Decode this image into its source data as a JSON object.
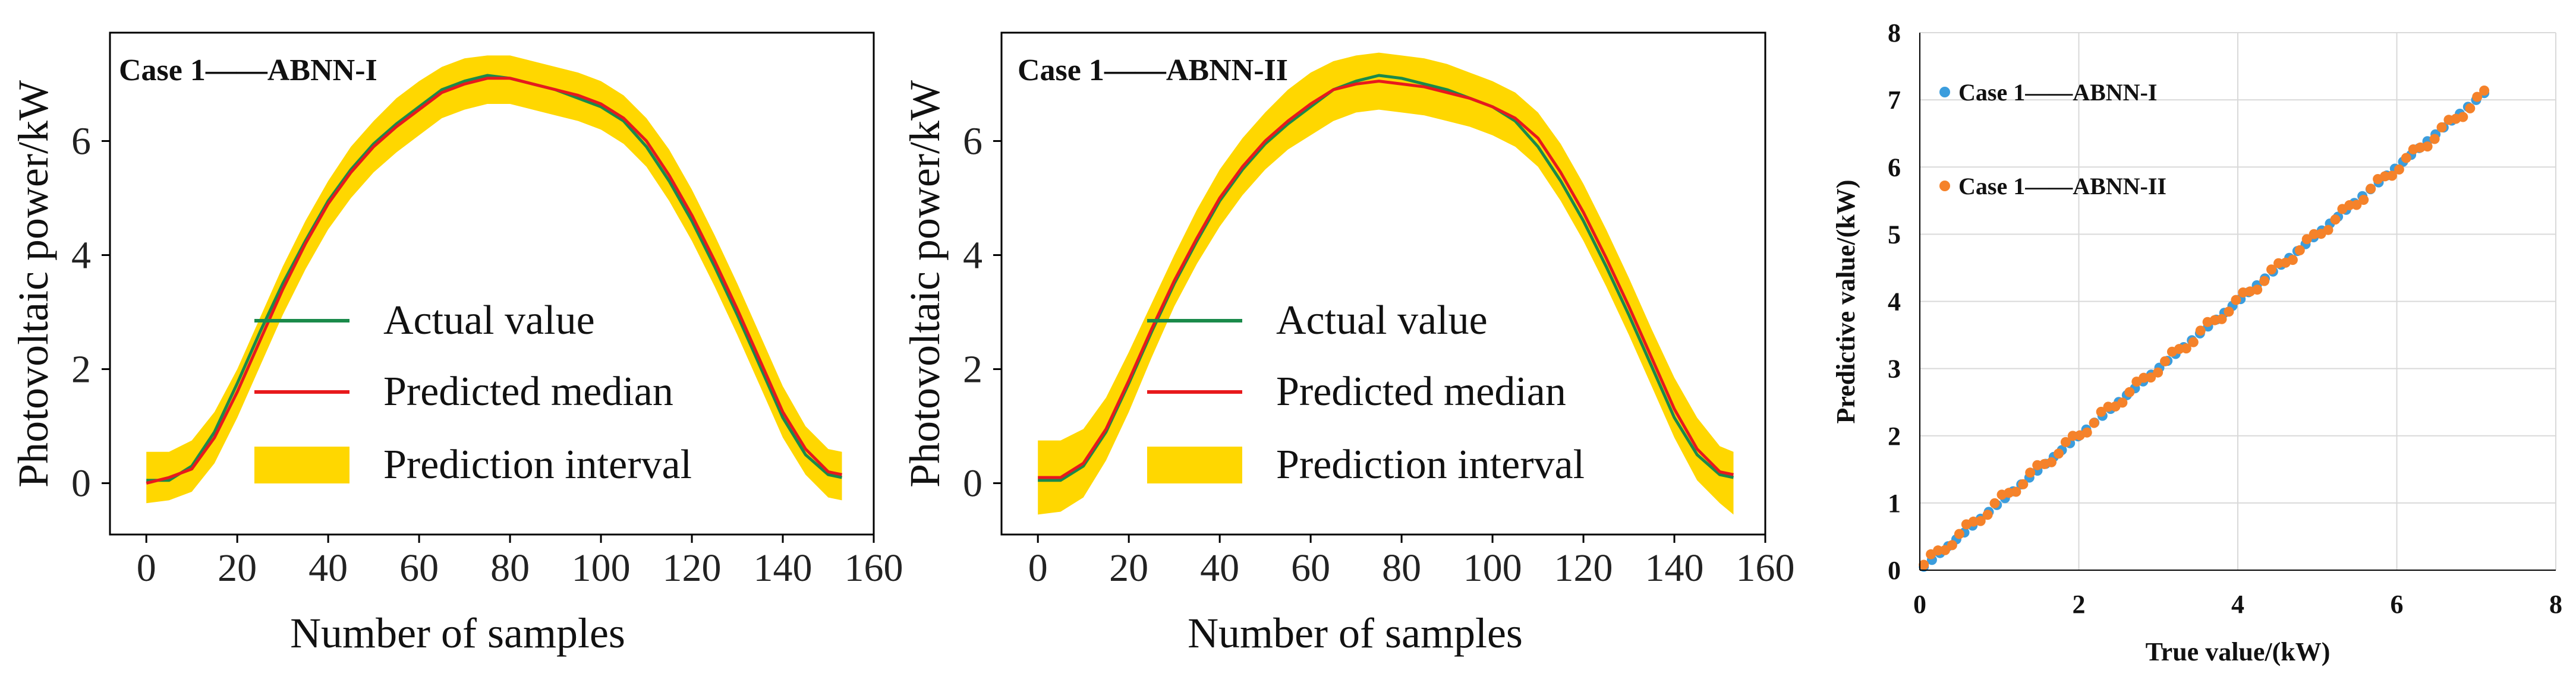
{
  "chart_data": [
    {
      "type": "line",
      "case_label": "Case 1——ABNN-I",
      "xlabel": "Number of samples",
      "ylabel": "Photovoltaic power/kW",
      "xlim": [
        -8,
        160
      ],
      "ylim": [
        -0.9,
        7.9
      ],
      "xticks": [
        0,
        20,
        40,
        60,
        80,
        100,
        120,
        140,
        160
      ],
      "yticks": [
        0,
        2,
        4,
        6
      ],
      "legend": [
        "Actual value",
        "Predicted median",
        "Prediction interval"
      ],
      "colors": {
        "actual": "#1a8a4a",
        "median": "#e8191c",
        "interval": "#ffd700"
      },
      "x": [
        0,
        5,
        10,
        15,
        20,
        25,
        30,
        35,
        40,
        45,
        50,
        55,
        60,
        65,
        70,
        75,
        80,
        85,
        90,
        95,
        100,
        105,
        110,
        115,
        120,
        125,
        130,
        135,
        140,
        145,
        150,
        153
      ],
      "actual": [
        0.05,
        0.05,
        0.3,
        0.9,
        1.75,
        2.65,
        3.5,
        4.25,
        4.95,
        5.5,
        5.95,
        6.3,
        6.6,
        6.9,
        7.05,
        7.15,
        7.1,
        7.0,
        6.9,
        6.75,
        6.6,
        6.35,
        5.9,
        5.3,
        4.6,
        3.8,
        2.95,
        2.05,
        1.15,
        0.5,
        0.15,
        0.1
      ],
      "median": [
        0.0,
        0.1,
        0.25,
        0.8,
        1.6,
        2.5,
        3.4,
        4.2,
        4.9,
        5.45,
        5.9,
        6.25,
        6.55,
        6.85,
        7.0,
        7.1,
        7.1,
        7.0,
        6.9,
        6.8,
        6.65,
        6.4,
        6.0,
        5.4,
        4.7,
        3.9,
        3.05,
        2.15,
        1.25,
        0.6,
        0.2,
        0.15
      ],
      "upper": [
        0.55,
        0.55,
        0.75,
        1.25,
        2.0,
        2.9,
        3.8,
        4.6,
        5.3,
        5.9,
        6.35,
        6.75,
        7.05,
        7.3,
        7.45,
        7.5,
        7.5,
        7.4,
        7.3,
        7.2,
        7.05,
        6.8,
        6.4,
        5.85,
        5.15,
        4.35,
        3.5,
        2.6,
        1.7,
        1.0,
        0.6,
        0.55
      ],
      "lower": [
        -0.35,
        -0.3,
        -0.15,
        0.35,
        1.15,
        2.05,
        2.95,
        3.75,
        4.45,
        5.0,
        5.45,
        5.8,
        6.1,
        6.4,
        6.55,
        6.65,
        6.65,
        6.55,
        6.45,
        6.35,
        6.2,
        5.95,
        5.55,
        4.95,
        4.25,
        3.45,
        2.6,
        1.7,
        0.8,
        0.15,
        -0.25,
        -0.3
      ]
    },
    {
      "type": "line",
      "case_label": "Case 1——ABNN-II",
      "xlabel": "Number of samples",
      "ylabel": "Photovoltaic power/kW",
      "xlim": [
        -8,
        160
      ],
      "ylim": [
        -0.9,
        7.9
      ],
      "xticks": [
        0,
        20,
        40,
        60,
        80,
        100,
        120,
        140,
        160
      ],
      "yticks": [
        0,
        2,
        4,
        6
      ],
      "legend": [
        "Actual value",
        "Predicted median",
        "Prediction interval"
      ],
      "colors": {
        "actual": "#1a8a4a",
        "median": "#e8191c",
        "interval": "#ffd700"
      },
      "x": [
        0,
        5,
        10,
        15,
        20,
        25,
        30,
        35,
        40,
        45,
        50,
        55,
        60,
        65,
        70,
        75,
        80,
        85,
        90,
        95,
        100,
        105,
        110,
        115,
        120,
        125,
        130,
        135,
        140,
        145,
        150,
        153
      ],
      "actual": [
        0.05,
        0.05,
        0.3,
        0.9,
        1.75,
        2.65,
        3.5,
        4.25,
        4.95,
        5.5,
        5.95,
        6.3,
        6.6,
        6.9,
        7.05,
        7.15,
        7.1,
        7.0,
        6.9,
        6.75,
        6.6,
        6.35,
        5.9,
        5.3,
        4.6,
        3.8,
        2.95,
        2.05,
        1.15,
        0.5,
        0.15,
        0.1
      ],
      "median": [
        0.1,
        0.1,
        0.35,
        0.95,
        1.8,
        2.7,
        3.55,
        4.3,
        5.0,
        5.55,
        6.0,
        6.35,
        6.65,
        6.9,
        7.0,
        7.05,
        7.0,
        6.95,
        6.85,
        6.75,
        6.6,
        6.4,
        6.05,
        5.45,
        4.75,
        3.95,
        3.1,
        2.2,
        1.3,
        0.6,
        0.2,
        0.15
      ],
      "upper": [
        0.75,
        0.75,
        0.95,
        1.5,
        2.3,
        3.15,
        4.0,
        4.8,
        5.5,
        6.05,
        6.5,
        6.9,
        7.2,
        7.4,
        7.5,
        7.55,
        7.5,
        7.45,
        7.35,
        7.2,
        7.05,
        6.85,
        6.5,
        5.95,
        5.25,
        4.45,
        3.6,
        2.7,
        1.85,
        1.15,
        0.65,
        0.55
      ],
      "lower": [
        -0.55,
        -0.5,
        -0.25,
        0.4,
        1.25,
        2.2,
        3.1,
        3.85,
        4.5,
        5.05,
        5.5,
        5.85,
        6.1,
        6.35,
        6.5,
        6.55,
        6.5,
        6.45,
        6.35,
        6.25,
        6.1,
        5.9,
        5.55,
        4.95,
        4.25,
        3.45,
        2.6,
        1.7,
        0.8,
        0.05,
        -0.35,
        -0.55
      ]
    },
    {
      "type": "scatter",
      "xlabel": "True value/(kW)",
      "ylabel": "Predictive value/(kW)",
      "xlim": [
        0,
        8
      ],
      "ylim": [
        0,
        8
      ],
      "xticks": [
        0,
        2,
        4,
        6,
        8
      ],
      "yticks": [
        0,
        1,
        2,
        3,
        4,
        5,
        6,
        7,
        8
      ],
      "grid": true,
      "legend_position": "top-left",
      "series": [
        {
          "name": "Case 1——ABNN-I",
          "color": "#3b9ddd",
          "x_range": [
            0.05,
            7.1
          ],
          "y_range": [
            0.05,
            7.1
          ],
          "n": 70
        },
        {
          "name": "Case 1——ABNN-II",
          "color": "#f5822a",
          "x_range": [
            0.05,
            7.1
          ],
          "y_range": [
            0.08,
            7.08
          ],
          "n": 80
        }
      ]
    }
  ]
}
